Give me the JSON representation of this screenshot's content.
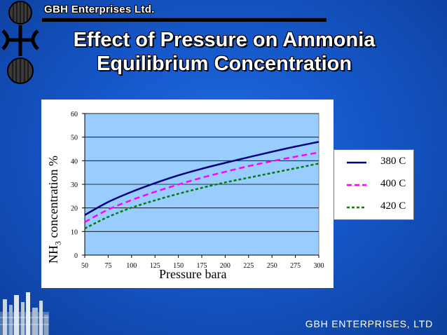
{
  "header": {
    "company": "GBH Enterprises Ltd.",
    "title_line1": "Effect of Pressure on Ammonia",
    "title_line2": "Equilibrium Concentration"
  },
  "footer": {
    "company": "GBH ENTERPRISES, LTD"
  },
  "colors": {
    "background": "#1557c9",
    "plot_area": "#99ccff",
    "series_380": "#000080",
    "series_400": "#ff00ff",
    "series_420": "#008000"
  },
  "chart_data": {
    "type": "line",
    "title": "",
    "xlabel": "Pressure bara",
    "ylabel_main": "NH",
    "ylabel_sub": "3",
    "ylabel_rest": " concentration %",
    "xlim": [
      50,
      300
    ],
    "ylim": [
      0,
      60
    ],
    "x_ticks": [
      "50",
      "75",
      "100",
      "125",
      "150",
      "175",
      "200",
      "225",
      "250",
      "275",
      "300"
    ],
    "y_ticks": [
      "0",
      "10",
      "20",
      "30",
      "40",
      "50",
      "60"
    ],
    "grid": true,
    "legend_position": "right",
    "x": [
      50,
      75,
      100,
      125,
      150,
      175,
      200,
      225,
      250,
      275,
      300
    ],
    "series": [
      {
        "name": "380 C",
        "style": "solid",
        "values": [
          17,
          22.5,
          26.8,
          30.5,
          33.8,
          36.6,
          39.1,
          41.5,
          43.8,
          46,
          48
        ]
      },
      {
        "name": "400 C",
        "style": "dashed",
        "values": [
          14,
          19.3,
          23.3,
          26.8,
          29.9,
          32.8,
          35.3,
          37.7,
          39.8,
          41.7,
          43.5
        ]
      },
      {
        "name": "420 C",
        "style": "dotted",
        "values": [
          11.3,
          16.2,
          20.1,
          23.2,
          26,
          28.5,
          30.8,
          32.8,
          34.8,
          36.8,
          38.8
        ]
      }
    ]
  }
}
